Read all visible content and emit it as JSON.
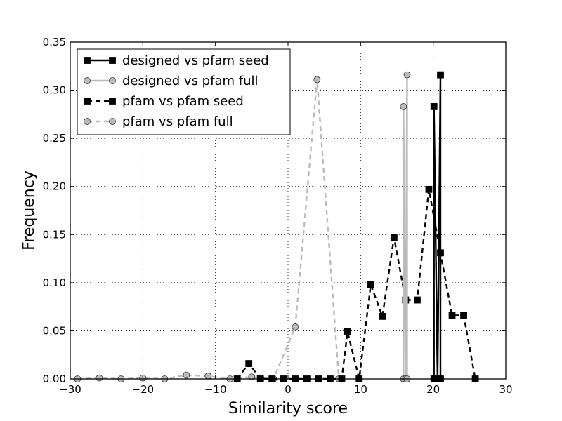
{
  "chart_data": {
    "type": "line",
    "title": "",
    "xlabel": "Similarity score",
    "ylabel": "Frequency",
    "xlim": [
      -30,
      30
    ],
    "ylim": [
      0,
      0.35
    ],
    "x_ticks": [
      -30,
      -20,
      -10,
      0,
      10,
      20,
      30
    ],
    "x_tick_labels": [
      "−30",
      "−20",
      "−10",
      "0",
      "10",
      "20",
      "30"
    ],
    "y_ticks": [
      0.0,
      0.05,
      0.1,
      0.15,
      0.2,
      0.25,
      0.3,
      0.35
    ],
    "y_tick_labels": [
      "0.00",
      "0.05",
      "0.10",
      "0.15",
      "0.20",
      "0.25",
      "0.30",
      "0.35"
    ],
    "grid": true,
    "legend_position": "top-left",
    "series": [
      {
        "name": "designed vs pfam seed",
        "color": "#000000",
        "linestyle": "solid",
        "marker": "square",
        "marker_fill": "#000000",
        "x": [
          20.1,
          20.1,
          20.6,
          21.0,
          21.0
        ],
        "y": [
          0.0,
          0.283,
          0.0,
          0.316,
          0.0
        ]
      },
      {
        "name": "designed vs pfam full",
        "color": "#bbbbbb",
        "linestyle": "solid",
        "marker": "circle",
        "marker_fill": "#bbbbbb",
        "x": [
          15.9,
          15.9,
          16.2,
          16.4,
          16.4
        ],
        "y": [
          0.0,
          0.283,
          0.0,
          0.316,
          0.0
        ]
      },
      {
        "name": "pfam vs pfam seed",
        "color": "#000000",
        "linestyle": "dashed",
        "marker": "square",
        "marker_fill": "#000000",
        "x": [
          -7.0,
          -5.4,
          -3.8,
          -2.2,
          -0.6,
          1.0,
          2.6,
          4.2,
          5.8,
          7.4,
          8.2,
          9.8,
          11.4,
          13.0,
          14.6,
          16.2,
          17.8,
          19.4,
          21.0,
          22.6,
          24.2,
          25.8
        ],
        "y": [
          0.0,
          0.016,
          0.0,
          0.0,
          0.0,
          0.0,
          0.0,
          0.0,
          0.0,
          0.0,
          0.049,
          0.0,
          0.098,
          0.065,
          0.147,
          0.082,
          0.082,
          0.197,
          0.131,
          0.066,
          0.066,
          0.0
        ]
      },
      {
        "name": "pfam vs pfam full",
        "color": "#bbbbbb",
        "linestyle": "dashed",
        "marker": "circle",
        "marker_fill": "#bbbbbb",
        "x": [
          -29.0,
          -26.0,
          -23.0,
          -20.0,
          -17.0,
          -14.0,
          -11.0,
          -8.0,
          -5.0,
          -2.0,
          1.0,
          4.0,
          7.0
        ],
        "y": [
          0.0,
          0.001,
          0.0,
          0.001,
          0.0,
          0.004,
          0.003,
          0.0,
          0.002,
          0.0,
          0.054,
          0.311,
          0.0
        ]
      }
    ]
  }
}
